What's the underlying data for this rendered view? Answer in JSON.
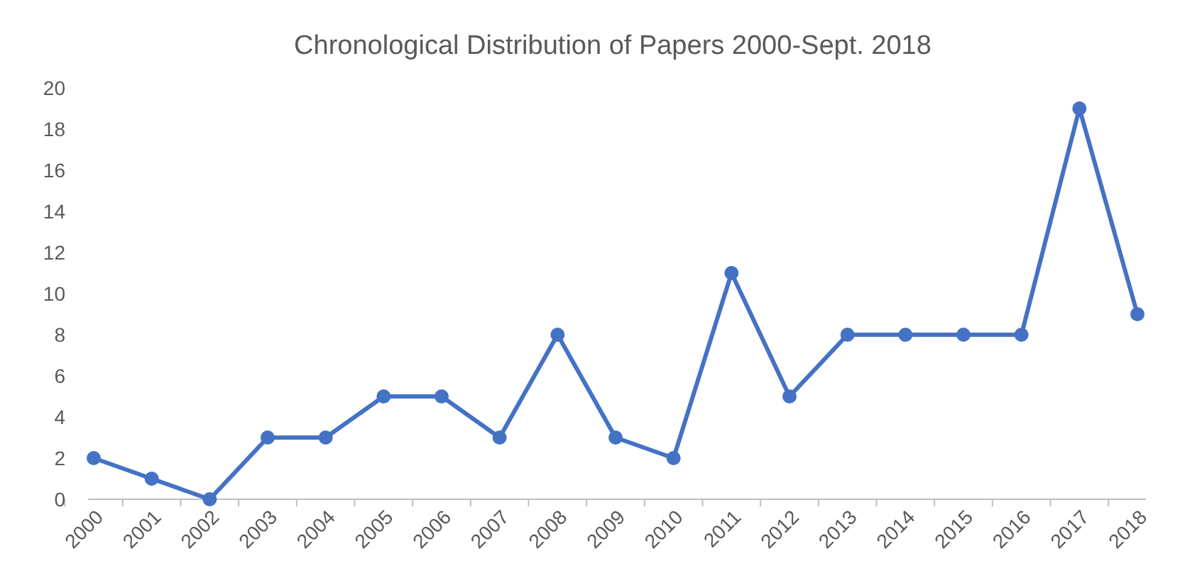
{
  "chart_data": {
    "type": "line",
    "title": "Chronological Distribution of Papers 2000-Sept. 2018",
    "categories": [
      "2000",
      "2001",
      "2002",
      "2003",
      "2004",
      "2005",
      "2006",
      "2007",
      "2008",
      "2009",
      "2010",
      "2011",
      "2012",
      "2013",
      "2014",
      "2015",
      "2016",
      "2017",
      "2018"
    ],
    "series": [
      {
        "color": "#4472c4",
        "values": [
          2,
          1,
          0,
          3,
          3,
          5,
          5,
          3,
          8,
          3,
          2,
          11,
          5,
          8,
          8,
          8,
          8,
          19,
          9
        ]
      }
    ],
    "ylim": [
      0,
      20
    ],
    "yticks": [
      0,
      2,
      4,
      6,
      8,
      10,
      12,
      14,
      16,
      18,
      20
    ],
    "grid": false,
    "marker": "circle",
    "line_style": "solid"
  }
}
